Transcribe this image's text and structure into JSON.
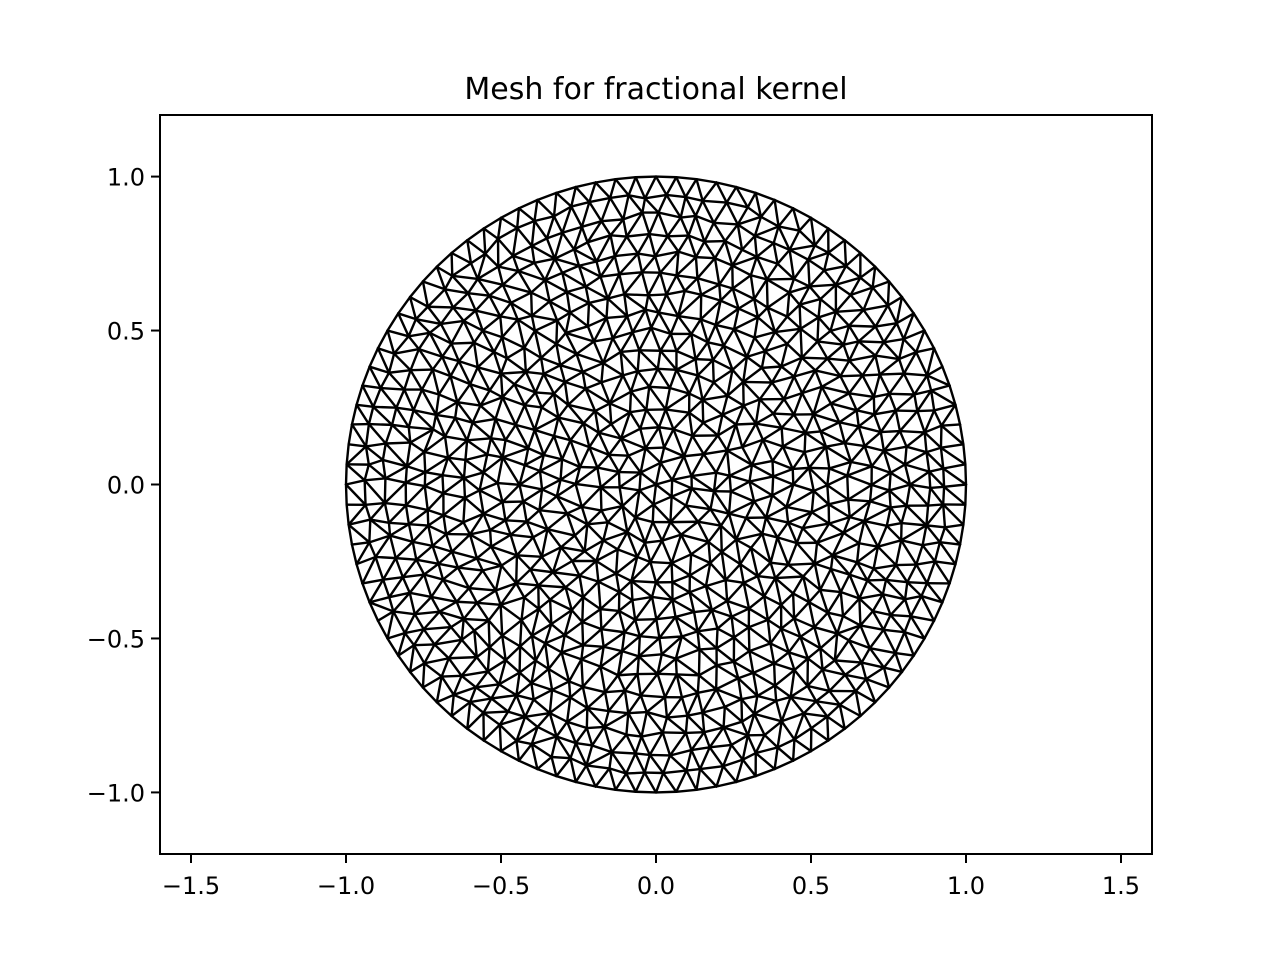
{
  "chart_data": {
    "type": "mesh",
    "title": "Mesh for fractional kernel",
    "xlabel": "",
    "ylabel": "",
    "xlim": [
      -1.6,
      1.6
    ],
    "ylim": [
      -1.2,
      1.2
    ],
    "xticks": [
      -1.5,
      -1.0,
      -0.5,
      0.0,
      0.5,
      1.0,
      1.5
    ],
    "yticks": [
      -1.0,
      -0.5,
      0.0,
      0.5,
      1.0
    ],
    "xtick_labels": [
      "−1.5",
      "−1.0",
      "−0.5",
      "0.0",
      "0.5",
      "1.0",
      "1.5"
    ],
    "ytick_labels": [
      "−1.0",
      "−0.5",
      "0.0",
      "0.5",
      "1.0"
    ],
    "grid": false,
    "domain": {
      "shape": "disk",
      "center": [
        0.0,
        0.0
      ],
      "radius": 1.0
    },
    "mesh": {
      "element": "triangle",
      "line_color": "#000000",
      "boundary_nodes": 96,
      "interior_rings": 15
    }
  }
}
